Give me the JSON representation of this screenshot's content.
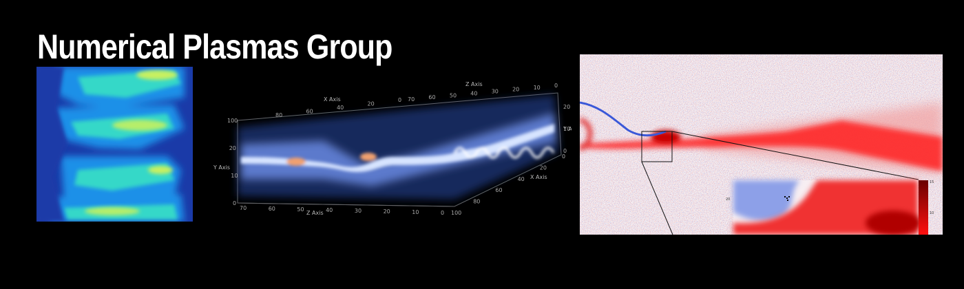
{
  "banner": {
    "title": "Numerical Plasmas Group"
  },
  "panels": {
    "heatmap": {
      "icon": "plasma-heatmap-image"
    },
    "volume": {
      "icon": "3d-volume-render-image",
      "axes": {
        "x_axis_label": "X Axis",
        "y_axis_label": "Y Axis",
        "z_axis_label": "Z Axis",
        "z_axis_label_bottom": "Z Axis",
        "x_axis_label_right": "X Axis",
        "y_axis_label_right": "Y Axis"
      },
      "ticks": {
        "top_x": [
          "80",
          "60",
          "40",
          "20",
          "0"
        ],
        "top_z": [
          "70",
          "60",
          "50",
          "40",
          "30",
          "20",
          "10",
          "0"
        ],
        "left_y": [
          "100",
          "20",
          "10",
          "0"
        ],
        "bottom_z": [
          "70",
          "60",
          "50",
          "40",
          "30",
          "20",
          "10",
          "0"
        ],
        "right_x": [
          "0",
          "20",
          "40",
          "60",
          "80",
          "100"
        ],
        "right_y": [
          "20",
          "10",
          "0"
        ]
      }
    },
    "reconnection": {
      "icon": "magnetic-reconnection-field-image",
      "inset": {
        "y_tick": "20",
        "colorbar_top": "15",
        "colorbar_mid": "10"
      }
    }
  },
  "colors": {
    "background": "#000000",
    "title": "#ffffff",
    "heatmap_base": "#1a3aa8",
    "volume_glow": "#8fb3ff",
    "field_red": "#e01010",
    "field_blue": "#3050d0"
  }
}
